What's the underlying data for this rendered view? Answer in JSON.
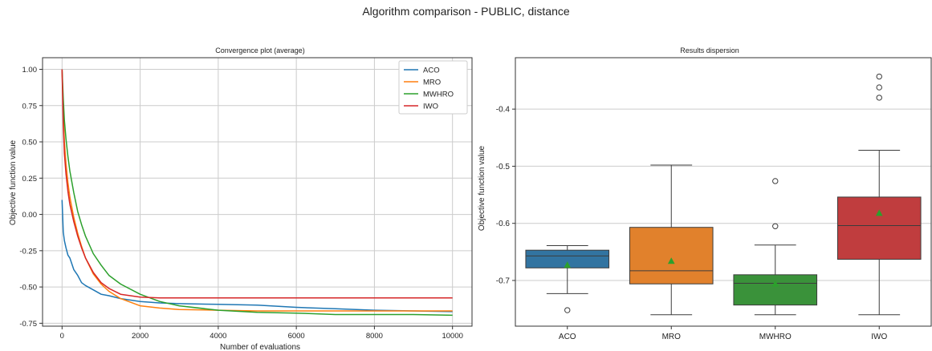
{
  "figure": {
    "title": "Algorithm comparison - PUBLIC, distance"
  },
  "chart_data": [
    {
      "type": "line",
      "title": "Convergence plot (average)",
      "xlabel": "Number of evaluations",
      "ylabel": "Objective function value",
      "xlim": [
        -500,
        10500
      ],
      "ylim": [
        -0.77,
        1.08
      ],
      "xticks": [
        0,
        2000,
        4000,
        6000,
        8000,
        10000
      ],
      "xtick_labels": [
        "0",
        "2000",
        "4000",
        "6000",
        "8000",
        "10000"
      ],
      "yticks": [
        -0.75,
        -0.5,
        -0.25,
        0.0,
        0.25,
        0.5,
        0.75,
        1.0
      ],
      "ytick_labels": [
        "-0.75",
        "-0.50",
        "-0.25",
        "0.00",
        "0.25",
        "0.50",
        "0.75",
        "1.00"
      ],
      "grid": true,
      "legend_position": "top-right",
      "series": [
        {
          "name": "ACO",
          "color": "#1f77b4",
          "x": [
            0,
            30,
            60,
            100,
            150,
            200,
            300,
            400,
            500,
            600,
            800,
            1000,
            1200,
            1500,
            2000,
            2500,
            3000,
            4000,
            5000,
            6000,
            7000,
            8000,
            9000,
            10000
          ],
          "y": [
            0.1,
            -0.12,
            -0.18,
            -0.23,
            -0.28,
            -0.3,
            -0.38,
            -0.42,
            -0.47,
            -0.49,
            -0.52,
            -0.55,
            -0.56,
            -0.58,
            -0.6,
            -0.61,
            -0.615,
            -0.62,
            -0.625,
            -0.64,
            -0.65,
            -0.66,
            -0.665,
            -0.67
          ]
        },
        {
          "name": "MRO",
          "color": "#ff7f0e",
          "x": [
            0,
            30,
            60,
            100,
            150,
            200,
            300,
            400,
            500,
            600,
            800,
            1000,
            1200,
            1500,
            2000,
            2500,
            3000,
            4000,
            5000,
            6000,
            7000,
            8000,
            9000,
            10000
          ],
          "y": [
            1.0,
            0.7,
            0.5,
            0.35,
            0.22,
            0.12,
            -0.02,
            -0.13,
            -0.22,
            -0.3,
            -0.41,
            -0.48,
            -0.53,
            -0.58,
            -0.63,
            -0.645,
            -0.655,
            -0.66,
            -0.665,
            -0.665,
            -0.665,
            -0.665,
            -0.665,
            -0.665
          ]
        },
        {
          "name": "MWHRO",
          "color": "#2ca02c",
          "x": [
            0,
            30,
            60,
            100,
            150,
            200,
            300,
            400,
            500,
            600,
            800,
            1000,
            1200,
            1500,
            2000,
            2500,
            3000,
            4000,
            5000,
            6000,
            7000,
            8000,
            9000,
            10000
          ],
          "y": [
            1.0,
            0.8,
            0.65,
            0.52,
            0.4,
            0.3,
            0.15,
            0.02,
            -0.07,
            -0.15,
            -0.27,
            -0.35,
            -0.42,
            -0.48,
            -0.55,
            -0.6,
            -0.63,
            -0.66,
            -0.675,
            -0.68,
            -0.69,
            -0.69,
            -0.69,
            -0.695
          ]
        },
        {
          "name": "IWO",
          "color": "#d62728",
          "x": [
            0,
            30,
            60,
            100,
            150,
            200,
            300,
            400,
            500,
            600,
            800,
            1000,
            1200,
            1500,
            2000,
            2500,
            3000,
            4000,
            5000,
            6000,
            7000,
            8000,
            9000,
            10000
          ],
          "y": [
            1.0,
            0.62,
            0.42,
            0.28,
            0.16,
            0.07,
            -0.05,
            -0.15,
            -0.23,
            -0.3,
            -0.4,
            -0.47,
            -0.51,
            -0.55,
            -0.57,
            -0.575,
            -0.575,
            -0.575,
            -0.575,
            -0.575,
            -0.575,
            -0.575,
            -0.575,
            -0.575
          ]
        }
      ]
    },
    {
      "type": "box",
      "title": "Results dispersion",
      "xlabel": "",
      "ylabel": "Objective function value",
      "ylim": [
        -0.78,
        -0.31
      ],
      "yticks": [
        -0.7,
        -0.6,
        -0.5,
        -0.4
      ],
      "ytick_labels": [
        "-0.7",
        "-0.6",
        "-0.5",
        "-0.4"
      ],
      "grid": true,
      "categories": [
        "ACO",
        "MRO",
        "MWHRO",
        "IWO"
      ],
      "boxes": [
        {
          "name": "ACO",
          "color": "#3274a1",
          "whisker_low": -0.723,
          "q1": -0.678,
          "median": -0.657,
          "q3": -0.647,
          "whisker_high": -0.639,
          "mean": -0.673,
          "outliers": [
            -0.752
          ]
        },
        {
          "name": "MRO",
          "color": "#e1812c",
          "whisker_low": -0.76,
          "q1": -0.706,
          "median": -0.683,
          "q3": -0.607,
          "whisker_high": -0.498,
          "mean": -0.666,
          "outliers": []
        },
        {
          "name": "MWHRO",
          "color": "#3a923a",
          "whisker_low": -0.76,
          "q1": -0.743,
          "median": -0.705,
          "q3": -0.69,
          "whisker_high": -0.638,
          "mean": -0.706,
          "outliers": [
            -0.605,
            -0.526
          ]
        },
        {
          "name": "IWO",
          "color": "#c03d3e",
          "whisker_low": -0.76,
          "q1": -0.663,
          "median": -0.604,
          "q3": -0.554,
          "whisker_high": -0.472,
          "mean": -0.582,
          "outliers": [
            -0.38,
            -0.362,
            -0.343
          ]
        }
      ]
    }
  ]
}
